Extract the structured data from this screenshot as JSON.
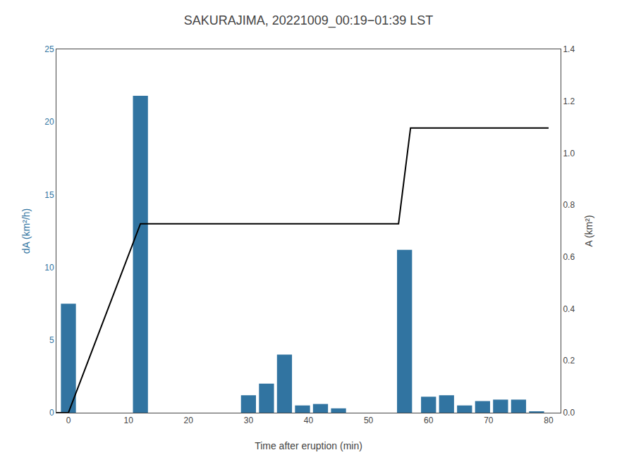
{
  "chart_data": {
    "type": "bar",
    "title": "SAKURAJIMA, 20221009_00:19−01:39 LST",
    "xlabel": "Time after eruption (min)",
    "ylabel": "dA (km²/h)",
    "y2label": "A (km²)",
    "series": [
      {
        "type": "bar",
        "color": "#3174A1",
        "x": [
          0,
          12,
          30,
          33,
          36,
          39,
          42,
          45,
          56,
          60,
          63,
          66,
          69,
          72,
          75,
          78
        ],
        "values": [
          7.5,
          21.8,
          1.2,
          2.0,
          4.0,
          0.5,
          0.6,
          0.3,
          11.2,
          1.1,
          1.2,
          0.5,
          0.8,
          0.9,
          0.9,
          0.05
        ]
      },
      {
        "type": "line",
        "color": "black",
        "axis": "y2",
        "x": [
          -2,
          0,
          12,
          55,
          57,
          80
        ],
        "values": [
          0,
          0,
          0.728,
          0.728,
          1.097,
          1.097
        ]
      }
    ],
    "xlim": [
      -2,
      82
    ],
    "xticks": [
      0,
      10,
      20,
      30,
      40,
      50,
      60,
      70,
      80
    ],
    "ylim": [
      0,
      25
    ],
    "yticks": [
      0,
      5,
      10,
      15,
      20,
      25
    ],
    "y2lim": [
      0,
      1.4
    ],
    "y2ticks": [
      {
        "value": 0,
        "label": "0.0"
      },
      0.2,
      0.4,
      0.6,
      0.8,
      {
        "value": 1.0,
        "label": "1.0"
      },
      1.2,
      1.4
    ],
    "grid": false
  }
}
